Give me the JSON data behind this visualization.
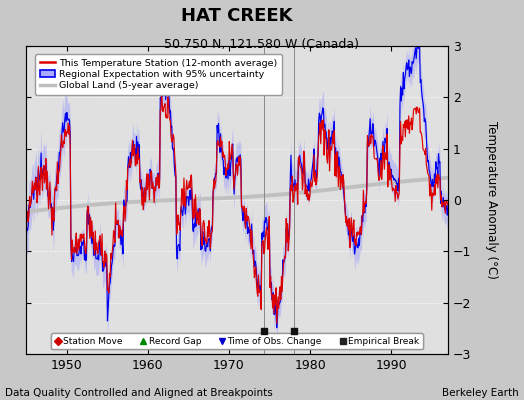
{
  "title": "HAT CREEK",
  "subtitle": "50.750 N, 121.580 W (Canada)",
  "ylabel": "Temperature Anomaly (°C)",
  "xlabel_left": "Data Quality Controlled and Aligned at Breakpoints",
  "xlabel_right": "Berkeley Earth",
  "ylim": [
    -3,
    3
  ],
  "xlim": [
    1945,
    1997
  ],
  "xticks": [
    1950,
    1960,
    1970,
    1980,
    1990
  ],
  "yticks": [
    -3,
    -2,
    -1,
    0,
    1,
    2,
    3
  ],
  "background_color": "#c8c8c8",
  "plot_bg_color": "#e0e0e0",
  "grid_color": "#b0b0b0",
  "empirical_breaks": [
    1974.3,
    1978.0
  ],
  "title_fontsize": 13,
  "subtitle_fontsize": 9,
  "tick_fontsize": 9,
  "footer_fontsize": 7.5
}
